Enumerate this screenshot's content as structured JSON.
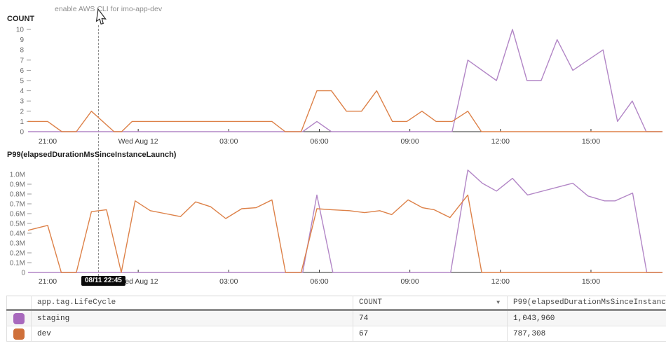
{
  "annotation": {
    "text": "enable AWS CLI for imo-app-dev",
    "tooltip": "08/11 22:45"
  },
  "chart_data": [
    {
      "type": "line",
      "title": "COUNT",
      "xlim": [
        20.35,
        41.37
      ],
      "ylim": [
        0,
        10
      ],
      "grid": false,
      "legend": "table-below",
      "x_ticks": [
        {
          "t": 21,
          "label": "21:00",
          "tick": false
        },
        {
          "t": 24,
          "label": "Wed Aug 12",
          "tick": true
        },
        {
          "t": 27,
          "label": "03:00",
          "tick": true
        },
        {
          "t": 30,
          "label": "06:00",
          "tick": true
        },
        {
          "t": 33,
          "label": "09:00",
          "tick": true
        },
        {
          "t": 36,
          "label": "12:00",
          "tick": true
        },
        {
          "t": 39,
          "label": "15:00",
          "tick": true
        }
      ],
      "y_ticks": [
        {
          "v": 10,
          "label": "10",
          "dash": true
        },
        {
          "v": 9,
          "label": "9",
          "dash": false
        },
        {
          "v": 8,
          "label": "8",
          "dash": false
        },
        {
          "v": 7,
          "label": "7",
          "dash": true
        },
        {
          "v": 6,
          "label": "6",
          "dash": true
        },
        {
          "v": 5,
          "label": "5",
          "dash": true
        },
        {
          "v": 4,
          "label": "4",
          "dash": true
        },
        {
          "v": 3,
          "label": "3",
          "dash": true
        },
        {
          "v": 2,
          "label": "2",
          "dash": true
        },
        {
          "v": 1,
          "label": "1",
          "dash": true
        },
        {
          "v": 0,
          "label": "0",
          "dash": false
        }
      ],
      "series": [
        {
          "name": "staging",
          "color": "#b286c6",
          "points": [
            [
              20.35,
              0
            ],
            [
              29.45,
              0
            ],
            [
              29.92,
              1
            ],
            [
              30.4,
              0
            ],
            [
              34.4,
              0
            ],
            [
              34.92,
              7
            ],
            [
              35.87,
              5
            ],
            [
              36.4,
              10
            ],
            [
              36.88,
              5
            ],
            [
              37.35,
              5
            ],
            [
              37.88,
              9
            ],
            [
              38.4,
              6
            ],
            [
              39.4,
              8
            ],
            [
              39.88,
              1
            ],
            [
              40.37,
              3
            ],
            [
              40.83,
              0
            ],
            [
              41.37,
              0
            ]
          ]
        },
        {
          "name": "dev",
          "color": "#dd8148",
          "points": [
            [
              20.35,
              1
            ],
            [
              21.0,
              1
            ],
            [
              21.47,
              0
            ],
            [
              21.95,
              0
            ],
            [
              22.45,
              2
            ],
            [
              23.2,
              0
            ],
            [
              23.45,
              0
            ],
            [
              23.8,
              1
            ],
            [
              28.43,
              1
            ],
            [
              28.87,
              0
            ],
            [
              29.4,
              0
            ],
            [
              29.92,
              4
            ],
            [
              30.4,
              4
            ],
            [
              30.9,
              2
            ],
            [
              31.4,
              2
            ],
            [
              31.9,
              4
            ],
            [
              32.42,
              1
            ],
            [
              32.9,
              1
            ],
            [
              33.4,
              2
            ],
            [
              33.87,
              1
            ],
            [
              34.4,
              1
            ],
            [
              34.92,
              2
            ],
            [
              35.37,
              0
            ],
            [
              41.37,
              0
            ]
          ]
        }
      ]
    },
    {
      "type": "line",
      "title": "P99(elapsedDurationMsSinceInstanceLaunch)",
      "xlim": [
        20.35,
        41.37
      ],
      "ylim": [
        0,
        1.0
      ],
      "grid": false,
      "legend": "table-below",
      "x_ticks": [
        {
          "t": 21,
          "label": "21:00",
          "tick": false
        },
        {
          "t": 24,
          "label": "Wed Aug 12",
          "tick": true
        },
        {
          "t": 27,
          "label": "03:00",
          "tick": true
        },
        {
          "t": 30,
          "label": "06:00",
          "tick": true
        },
        {
          "t": 33,
          "label": "09:00",
          "tick": true
        },
        {
          "t": 36,
          "label": "12:00",
          "tick": true
        },
        {
          "t": 39,
          "label": "15:00",
          "tick": true
        }
      ],
      "y_ticks": [
        {
          "v": 1.0,
          "label": "1.0M",
          "dash": false
        },
        {
          "v": 0.9,
          "label": "0.9M",
          "dash": true
        },
        {
          "v": 0.8,
          "label": "0.8M",
          "dash": true
        },
        {
          "v": 0.7,
          "label": "0.7M",
          "dash": true
        },
        {
          "v": 0.6,
          "label": "0.6M",
          "dash": true
        },
        {
          "v": 0.5,
          "label": "0.5M",
          "dash": true
        },
        {
          "v": 0.4,
          "label": "0.4M",
          "dash": true
        },
        {
          "v": 0.3,
          "label": "0.3M",
          "dash": false
        },
        {
          "v": 0.2,
          "label": "0.2M",
          "dash": true
        },
        {
          "v": 0.1,
          "label": "0.1M",
          "dash": true
        },
        {
          "v": 0,
          "label": "0",
          "dash": false
        }
      ],
      "series": [
        {
          "name": "staging",
          "color": "#b286c6",
          "points": [
            [
              20.35,
              0
            ],
            [
              29.45,
              0
            ],
            [
              29.92,
              0.79
            ],
            [
              30.45,
              0
            ],
            [
              34.35,
              0
            ],
            [
              34.92,
              1.044
            ],
            [
              35.4,
              0.91
            ],
            [
              35.87,
              0.83
            ],
            [
              36.4,
              0.96
            ],
            [
              36.9,
              0.79
            ],
            [
              38.4,
              0.91
            ],
            [
              38.9,
              0.78
            ],
            [
              39.45,
              0.73
            ],
            [
              39.8,
              0.73
            ],
            [
              40.38,
              0.81
            ],
            [
              40.85,
              0
            ],
            [
              41.37,
              0
            ]
          ]
        },
        {
          "name": "dev",
          "color": "#dd8148",
          "points": [
            [
              20.35,
              0.43
            ],
            [
              21.0,
              0.48
            ],
            [
              21.45,
              0
            ],
            [
              21.95,
              0
            ],
            [
              22.45,
              0.62
            ],
            [
              22.95,
              0.64
            ],
            [
              23.44,
              0
            ],
            [
              23.9,
              0.73
            ],
            [
              24.4,
              0.63
            ],
            [
              24.9,
              0.6
            ],
            [
              25.4,
              0.57
            ],
            [
              25.9,
              0.72
            ],
            [
              26.4,
              0.67
            ],
            [
              26.9,
              0.55
            ],
            [
              27.43,
              0.65
            ],
            [
              27.9,
              0.66
            ],
            [
              28.43,
              0.74
            ],
            [
              28.88,
              0
            ],
            [
              29.4,
              0
            ],
            [
              29.92,
              0.65
            ],
            [
              30.4,
              0.64
            ],
            [
              31.0,
              0.63
            ],
            [
              31.5,
              0.61
            ],
            [
              32.0,
              0.63
            ],
            [
              32.4,
              0.59
            ],
            [
              32.94,
              0.74
            ],
            [
              33.42,
              0.66
            ],
            [
              33.8,
              0.64
            ],
            [
              34.33,
              0.56
            ],
            [
              34.92,
              0.79
            ],
            [
              35.38,
              0
            ],
            [
              41.37,
              0
            ]
          ]
        }
      ]
    }
  ],
  "table": {
    "columns": [
      {
        "label": "app.tag.LifeCycle"
      },
      {
        "label": "COUNT",
        "sort": "desc"
      },
      {
        "label": "P99(elapsedDurationMsSinceInstanceLaunch)"
      }
    ],
    "rows": [
      {
        "label": "staging",
        "swatch_color": "#a869bd",
        "count": "74",
        "p99": "1,043,960"
      },
      {
        "label": "dev",
        "swatch_color": "#cf703a",
        "count": "67",
        "p99": "787,308"
      }
    ]
  }
}
